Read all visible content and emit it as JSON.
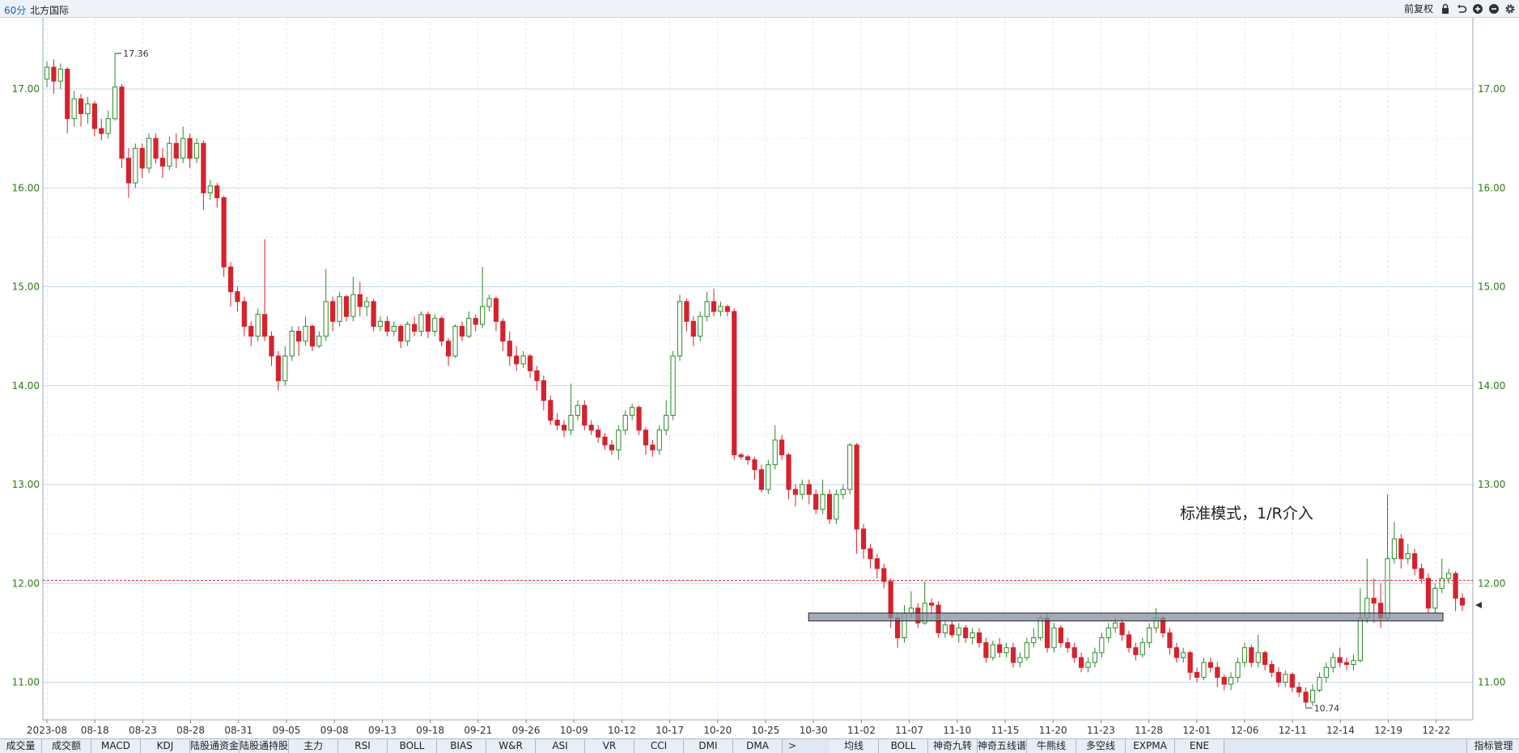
{
  "header": {
    "period": "60分",
    "stock_name": "北方国际",
    "adjust_label": "前复权",
    "icons": [
      "lock-icon",
      "undo-icon",
      "zoom-in-icon",
      "zoom-out-icon",
      "settings-icon"
    ]
  },
  "annotation_text": "标准模式，1/R介入",
  "chart_data": {
    "type": "candlestick",
    "title": "",
    "ylim": [
      10.62,
      17.72
    ],
    "y_ticks": [
      "17.00",
      "16.00",
      "15.00",
      "14.00",
      "13.00",
      "12.00",
      "11.00"
    ],
    "x_ticks": [
      "2023-08",
      "08-18",
      "08-23",
      "08-28",
      "08-31",
      "09-05",
      "09-08",
      "09-13",
      "09-18",
      "09-21",
      "09-26",
      "10-09",
      "10-12",
      "10-17",
      "10-20",
      "10-25",
      "10-30",
      "11-02",
      "11-07",
      "11-10",
      "11-15",
      "11-20",
      "11-23",
      "11-28",
      "12-01",
      "12-06",
      "12-11",
      "12-14",
      "12-19",
      "12-22"
    ],
    "high_label": "17.36",
    "low_label": "10.74",
    "high_value": 17.36,
    "low_value": 10.74,
    "reference_price": 12.03,
    "current_price": 11.78,
    "zone": {
      "low": 11.62,
      "high": 11.7,
      "from": "10-30",
      "to": "12-21"
    },
    "colors": {
      "up": "#2b8a2b",
      "down": "#d5222e",
      "grid": "#c5d7ea",
      "axis_text": "#2b7a12",
      "zone": "#8590a3"
    },
    "candles": [
      [
        17.1,
        17.22,
        17.02,
        17.28
      ],
      [
        17.22,
        17.08,
        16.95,
        17.3
      ],
      [
        17.08,
        17.2,
        17.0,
        17.26
      ],
      [
        17.2,
        16.7,
        16.55,
        17.22
      ],
      [
        16.7,
        16.9,
        16.62,
        16.98
      ],
      [
        16.9,
        16.75,
        16.62,
        16.95
      ],
      [
        16.75,
        16.85,
        16.65,
        16.92
      ],
      [
        16.85,
        16.6,
        16.52,
        16.88
      ],
      [
        16.6,
        16.55,
        16.48,
        16.7
      ],
      [
        16.55,
        16.7,
        16.5,
        16.78
      ],
      [
        16.7,
        17.02,
        16.68,
        17.36
      ],
      [
        17.02,
        16.3,
        16.2,
        17.05
      ],
      [
        16.3,
        16.05,
        15.9,
        16.4
      ],
      [
        16.05,
        16.4,
        16.0,
        16.45
      ],
      [
        16.4,
        16.2,
        16.1,
        16.45
      ],
      [
        16.2,
        16.5,
        16.15,
        16.55
      ],
      [
        16.5,
        16.3,
        16.25,
        16.55
      ],
      [
        16.3,
        16.22,
        16.1,
        16.4
      ],
      [
        16.22,
        16.45,
        16.18,
        16.52
      ],
      [
        16.45,
        16.3,
        16.2,
        16.55
      ],
      [
        16.3,
        16.5,
        16.25,
        16.62
      ],
      [
        16.5,
        16.3,
        16.2,
        16.55
      ],
      [
        16.3,
        16.45,
        16.25,
        16.5
      ],
      [
        16.45,
        15.95,
        15.78,
        16.48
      ],
      [
        15.95,
        16.02,
        15.88,
        16.08
      ],
      [
        16.02,
        15.9,
        15.8,
        16.05
      ],
      [
        15.9,
        15.2,
        15.1,
        15.92
      ],
      [
        15.2,
        14.95,
        14.8,
        15.25
      ],
      [
        14.95,
        14.85,
        14.75,
        15.0
      ],
      [
        14.85,
        14.6,
        14.5,
        14.9
      ],
      [
        14.6,
        14.5,
        14.4,
        14.65
      ],
      [
        14.5,
        14.72,
        14.45,
        14.78
      ],
      [
        14.72,
        14.5,
        14.45,
        15.48
      ],
      [
        14.5,
        14.3,
        14.2,
        14.55
      ],
      [
        14.3,
        14.05,
        13.95,
        14.35
      ],
      [
        14.05,
        14.3,
        14.0,
        14.4
      ],
      [
        14.3,
        14.55,
        14.25,
        14.6
      ],
      [
        14.55,
        14.45,
        14.3,
        14.6
      ],
      [
        14.45,
        14.6,
        14.4,
        14.7
      ],
      [
        14.6,
        14.4,
        14.35,
        14.62
      ],
      [
        14.4,
        14.5,
        14.38,
        14.55
      ],
      [
        14.5,
        14.85,
        14.45,
        15.18
      ],
      [
        14.85,
        14.65,
        14.55,
        14.9
      ],
      [
        14.65,
        14.9,
        14.6,
        14.95
      ],
      [
        14.9,
        14.7,
        14.65,
        14.92
      ],
      [
        14.7,
        14.92,
        14.65,
        15.1
      ],
      [
        14.92,
        14.8,
        14.7,
        15.05
      ],
      [
        14.8,
        14.85,
        14.7,
        14.9
      ],
      [
        14.85,
        14.6,
        14.55,
        14.88
      ],
      [
        14.6,
        14.65,
        14.55,
        14.7
      ],
      [
        14.65,
        14.55,
        14.5,
        14.7
      ],
      [
        14.55,
        14.6,
        14.5,
        14.65
      ],
      [
        14.6,
        14.45,
        14.38,
        14.62
      ],
      [
        14.45,
        14.62,
        14.4,
        14.65
      ],
      [
        14.62,
        14.55,
        14.5,
        14.7
      ],
      [
        14.55,
        14.72,
        14.5,
        14.75
      ],
      [
        14.72,
        14.55,
        14.48,
        14.75
      ],
      [
        14.55,
        14.68,
        14.5,
        14.72
      ],
      [
        14.68,
        14.45,
        14.4,
        14.7
      ],
      [
        14.45,
        14.3,
        14.2,
        14.48
      ],
      [
        14.3,
        14.6,
        14.28,
        14.62
      ],
      [
        14.6,
        14.5,
        14.45,
        14.65
      ],
      [
        14.5,
        14.68,
        14.48,
        14.75
      ],
      [
        14.68,
        14.62,
        14.55,
        14.72
      ],
      [
        14.62,
        14.8,
        14.58,
        15.2
      ],
      [
        14.8,
        14.88,
        14.75,
        14.92
      ],
      [
        14.88,
        14.65,
        14.55,
        14.9
      ],
      [
        14.65,
        14.45,
        14.35,
        14.68
      ],
      [
        14.45,
        14.3,
        14.2,
        14.55
      ],
      [
        14.3,
        14.22,
        14.15,
        14.4
      ],
      [
        14.22,
        14.3,
        14.18,
        14.35
      ],
      [
        14.3,
        14.15,
        14.08,
        14.32
      ],
      [
        14.15,
        14.05,
        13.95,
        14.2
      ],
      [
        14.05,
        13.85,
        13.75,
        14.1
      ],
      [
        13.85,
        13.65,
        13.6,
        13.9
      ],
      [
        13.65,
        13.6,
        13.55,
        13.72
      ],
      [
        13.6,
        13.55,
        13.48,
        13.65
      ],
      [
        13.55,
        13.7,
        13.5,
        14.02
      ],
      [
        13.7,
        13.8,
        13.65,
        13.85
      ],
      [
        13.8,
        13.6,
        13.55,
        13.85
      ],
      [
        13.6,
        13.55,
        13.5,
        13.65
      ],
      [
        13.55,
        13.48,
        13.42,
        13.6
      ],
      [
        13.48,
        13.4,
        13.35,
        13.52
      ],
      [
        13.4,
        13.35,
        13.3,
        13.45
      ],
      [
        13.35,
        13.55,
        13.25,
        13.6
      ],
      [
        13.55,
        13.7,
        13.5,
        13.75
      ],
      [
        13.7,
        13.78,
        13.65,
        13.82
      ],
      [
        13.78,
        13.55,
        13.5,
        13.8
      ],
      [
        13.55,
        13.4,
        13.3,
        13.58
      ],
      [
        13.4,
        13.35,
        13.28,
        13.45
      ],
      [
        13.35,
        13.55,
        13.3,
        13.6
      ],
      [
        13.55,
        13.7,
        13.5,
        13.85
      ],
      [
        13.7,
        14.3,
        13.65,
        14.35
      ],
      [
        14.3,
        14.85,
        14.25,
        14.92
      ],
      [
        14.85,
        14.65,
        14.55,
        14.88
      ],
      [
        14.65,
        14.5,
        14.4,
        14.7
      ],
      [
        14.5,
        14.7,
        14.45,
        14.75
      ],
      [
        14.7,
        14.85,
        14.65,
        14.95
      ],
      [
        14.85,
        14.75,
        14.7,
        14.98
      ],
      [
        14.75,
        14.8,
        14.7,
        14.85
      ],
      [
        14.8,
        14.75,
        14.7,
        14.82
      ],
      [
        14.75,
        13.3,
        13.25,
        14.78
      ],
      [
        13.3,
        13.28,
        13.25,
        13.32
      ],
      [
        13.28,
        13.25,
        13.2,
        13.3
      ],
      [
        13.25,
        13.15,
        13.05,
        13.28
      ],
      [
        13.15,
        12.95,
        12.92,
        13.2
      ],
      [
        12.95,
        13.2,
        12.9,
        13.25
      ],
      [
        13.2,
        13.45,
        13.15,
        13.6
      ],
      [
        13.45,
        13.3,
        13.25,
        13.5
      ],
      [
        13.3,
        12.95,
        12.85,
        13.32
      ],
      [
        12.95,
        12.9,
        12.78,
        13.0
      ],
      [
        12.9,
        13.0,
        12.85,
        13.05
      ],
      [
        13.0,
        12.9,
        12.8,
        13.05
      ],
      [
        12.9,
        12.75,
        12.7,
        12.95
      ],
      [
        12.75,
        12.9,
        12.7,
        13.05
      ],
      [
        12.9,
        12.65,
        12.6,
        12.95
      ],
      [
        12.65,
        12.9,
        12.6,
        12.95
      ],
      [
        12.9,
        12.95,
        12.85,
        13.0
      ],
      [
        12.95,
        13.4,
        12.9,
        13.42
      ],
      [
        13.4,
        12.55,
        12.3,
        13.42
      ],
      [
        12.55,
        12.35,
        12.25,
        12.6
      ],
      [
        12.35,
        12.25,
        12.15,
        12.4
      ],
      [
        12.25,
        12.15,
        12.05,
        12.3
      ],
      [
        12.15,
        12.02,
        11.95,
        12.2
      ],
      [
        12.02,
        11.65,
        11.55,
        12.05
      ],
      [
        11.65,
        11.45,
        11.35,
        11.7
      ],
      [
        11.45,
        11.7,
        11.4,
        11.78
      ],
      [
        11.7,
        11.75,
        11.65,
        11.92
      ],
      [
        11.75,
        11.6,
        11.55,
        11.8
      ],
      [
        11.6,
        11.8,
        11.58,
        12.02
      ],
      [
        11.8,
        11.78,
        11.7,
        11.85
      ],
      [
        11.78,
        11.5,
        11.45,
        11.82
      ],
      [
        11.5,
        11.58,
        11.45,
        11.62
      ],
      [
        11.58,
        11.48,
        11.45,
        11.62
      ],
      [
        11.48,
        11.55,
        11.4,
        11.6
      ],
      [
        11.55,
        11.45,
        11.4,
        11.58
      ],
      [
        11.45,
        11.5,
        11.38,
        11.55
      ],
      [
        11.5,
        11.4,
        11.35,
        11.55
      ],
      [
        11.4,
        11.25,
        11.2,
        11.45
      ],
      [
        11.25,
        11.38,
        11.22,
        11.42
      ],
      [
        11.38,
        11.3,
        11.25,
        11.45
      ],
      [
        11.3,
        11.35,
        11.25,
        11.4
      ],
      [
        11.35,
        11.2,
        11.15,
        11.4
      ],
      [
        11.2,
        11.25,
        11.15,
        11.3
      ],
      [
        11.25,
        11.4,
        11.22,
        11.45
      ],
      [
        11.4,
        11.45,
        11.35,
        11.55
      ],
      [
        11.45,
        11.65,
        11.42,
        11.68
      ],
      [
        11.65,
        11.35,
        11.3,
        11.7
      ],
      [
        11.35,
        11.55,
        11.3,
        11.6
      ],
      [
        11.55,
        11.4,
        11.35,
        11.58
      ],
      [
        11.4,
        11.35,
        11.3,
        11.45
      ],
      [
        11.35,
        11.25,
        11.2,
        11.4
      ],
      [
        11.25,
        11.15,
        11.1,
        11.3
      ],
      [
        11.15,
        11.2,
        11.1,
        11.25
      ],
      [
        11.2,
        11.3,
        11.15,
        11.35
      ],
      [
        11.3,
        11.45,
        11.25,
        11.5
      ],
      [
        11.45,
        11.55,
        11.4,
        11.6
      ],
      [
        11.55,
        11.6,
        11.5,
        11.65
      ],
      [
        11.6,
        11.48,
        11.42,
        11.65
      ],
      [
        11.48,
        11.35,
        11.3,
        11.52
      ],
      [
        11.35,
        11.28,
        11.22,
        11.4
      ],
      [
        11.28,
        11.4,
        11.25,
        11.45
      ],
      [
        11.4,
        11.55,
        11.35,
        11.6
      ],
      [
        11.55,
        11.65,
        11.5,
        11.75
      ],
      [
        11.65,
        11.5,
        11.45,
        11.68
      ],
      [
        11.5,
        11.35,
        11.28,
        11.55
      ],
      [
        11.35,
        11.25,
        11.2,
        11.4
      ],
      [
        11.25,
        11.3,
        11.2,
        11.35
      ],
      [
        11.3,
        11.1,
        11.02,
        11.32
      ],
      [
        11.1,
        11.05,
        11.0,
        11.15
      ],
      [
        11.05,
        11.2,
        11.02,
        11.25
      ],
      [
        11.2,
        11.15,
        11.1,
        11.25
      ],
      [
        11.15,
        11.05,
        10.95,
        11.2
      ],
      [
        11.05,
        10.98,
        10.92,
        11.08
      ],
      [
        10.98,
        11.05,
        10.92,
        11.1
      ],
      [
        11.05,
        11.2,
        11.0,
        11.25
      ],
      [
        11.2,
        11.35,
        11.15,
        11.4
      ],
      [
        11.35,
        11.2,
        11.15,
        11.38
      ],
      [
        11.2,
        11.3,
        11.15,
        11.48
      ],
      [
        11.3,
        11.18,
        11.12,
        11.32
      ],
      [
        11.18,
        11.1,
        11.05,
        11.22
      ],
      [
        11.1,
        11.0,
        10.95,
        11.15
      ],
      [
        11.0,
        11.08,
        10.95,
        11.12
      ],
      [
        11.08,
        10.95,
        10.9,
        11.1
      ],
      [
        10.95,
        10.9,
        10.85,
        11.0
      ],
      [
        10.9,
        10.8,
        10.74,
        10.95
      ],
      [
        10.8,
        10.92,
        10.76,
        10.98
      ],
      [
        10.92,
        11.05,
        10.9,
        11.1
      ],
      [
        11.05,
        11.15,
        11.0,
        11.2
      ],
      [
        11.15,
        11.25,
        11.1,
        11.3
      ],
      [
        11.25,
        11.2,
        11.15,
        11.35
      ],
      [
        11.2,
        11.18,
        11.12,
        11.25
      ],
      [
        11.18,
        11.22,
        11.12,
        11.28
      ],
      [
        11.22,
        11.65,
        11.2,
        11.95
      ],
      [
        11.65,
        11.85,
        11.6,
        12.25
      ],
      [
        11.85,
        11.8,
        11.6,
        12.05
      ],
      [
        11.8,
        11.65,
        11.55,
        12.0
      ],
      [
        11.65,
        12.25,
        11.62,
        12.9
      ],
      [
        12.25,
        12.45,
        12.2,
        12.62
      ],
      [
        12.45,
        12.25,
        12.15,
        12.5
      ],
      [
        12.25,
        12.3,
        12.2,
        12.4
      ],
      [
        12.3,
        12.15,
        12.08,
        12.35
      ],
      [
        12.15,
        12.05,
        12.0,
        12.2
      ],
      [
        12.05,
        11.75,
        11.7,
        12.1
      ],
      [
        11.75,
        11.95,
        11.7,
        12.0
      ],
      [
        11.95,
        12.05,
        11.9,
        12.25
      ],
      [
        12.05,
        12.1,
        12.0,
        12.15
      ],
      [
        12.1,
        11.85,
        11.72,
        12.12
      ],
      [
        11.85,
        11.78,
        11.72,
        11.9
      ]
    ]
  },
  "indicator_tabs": [
    "成交量",
    "成交额",
    "MACD",
    "KDJ",
    "陆股通资金",
    "陆股通持股",
    "主力",
    "RSI",
    "BOLL",
    "BIAS",
    "W&R",
    "ASI",
    "VR",
    "CCI",
    "DMI",
    "DMA"
  ],
  "overlay_tabs": [
    "均线",
    "BOLL",
    "神奇九转",
    "神奇五线谱",
    "牛熊线",
    "多空线",
    "EXPMA",
    "ENE"
  ],
  "more_arrow": ">",
  "manage_label": "指标管理"
}
